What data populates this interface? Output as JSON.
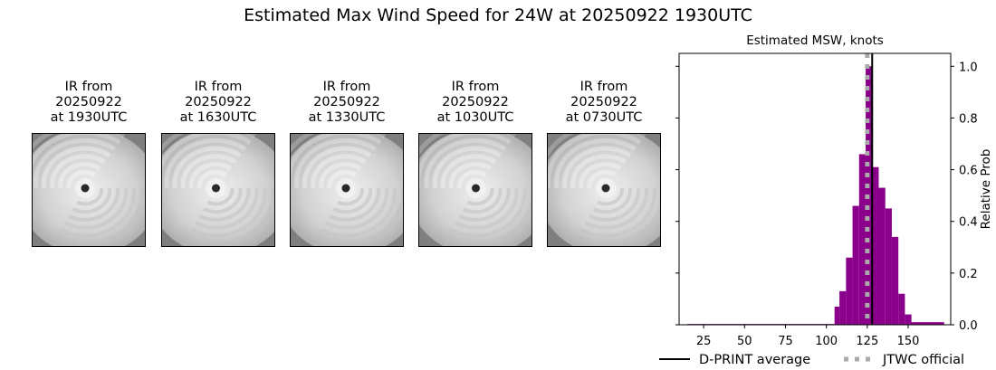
{
  "figure": {
    "title": "Estimated Max Wind Speed for 24W at 20250922 1930UTC"
  },
  "ir_panels": [
    {
      "line1": "IR from",
      "line2": "20250922",
      "line3": "at 1930UTC"
    },
    {
      "line1": "IR from",
      "line2": "20250922",
      "line3": "at 1630UTC"
    },
    {
      "line1": "IR from",
      "line2": "20250922",
      "line3": "at 1330UTC"
    },
    {
      "line1": "IR from",
      "line2": "20250922",
      "line3": "at 1030UTC"
    },
    {
      "line1": "IR from",
      "line2": "20250922",
      "line3": "at 0730UTC"
    }
  ],
  "chart_data": {
    "type": "bar",
    "title": "Estimated MSW, knots",
    "xlabel": "",
    "ylabel": "Relative Prob",
    "xlim": [
      10,
      176
    ],
    "ylim": [
      0,
      1.05
    ],
    "x_ticks": [
      25,
      50,
      75,
      100,
      125,
      150
    ],
    "y_ticks": [
      0.0,
      0.2,
      0.4,
      0.6,
      0.8,
      1.0
    ],
    "y_tick_labels": [
      "0.0",
      "0.2",
      "0.4",
      "0.6",
      "0.8",
      "1.0"
    ],
    "bar_color": "#8b008b",
    "bins": [
      {
        "x0": 15,
        "x1": 105,
        "value": 0.003
      },
      {
        "x0": 105,
        "x1": 108,
        "value": 0.07
      },
      {
        "x0": 108,
        "x1": 112,
        "value": 0.13
      },
      {
        "x0": 112,
        "x1": 116,
        "value": 0.26
      },
      {
        "x0": 116,
        "x1": 120,
        "value": 0.46
      },
      {
        "x0": 120,
        "x1": 124,
        "value": 0.66
      },
      {
        "x0": 124,
        "x1": 128,
        "value": 1.0
      },
      {
        "x0": 128,
        "x1": 132,
        "value": 0.61
      },
      {
        "x0": 132,
        "x1": 136,
        "value": 0.53
      },
      {
        "x0": 136,
        "x1": 140,
        "value": 0.45
      },
      {
        "x0": 140,
        "x1": 144,
        "value": 0.34
      },
      {
        "x0": 144,
        "x1": 148,
        "value": 0.12
      },
      {
        "x0": 148,
        "x1": 152,
        "value": 0.04
      },
      {
        "x0": 152,
        "x1": 172,
        "value": 0.01
      }
    ],
    "vlines": [
      {
        "name": "D-PRINT average",
        "x": 128,
        "color": "#000000",
        "style": "solid"
      },
      {
        "name": "JTWC official",
        "x": 125,
        "color": "#aaaaaa",
        "style": "dotted"
      }
    ],
    "legend": {
      "placement": "bottom",
      "entries": [
        "D-PRINT average",
        "JTWC official"
      ]
    }
  }
}
